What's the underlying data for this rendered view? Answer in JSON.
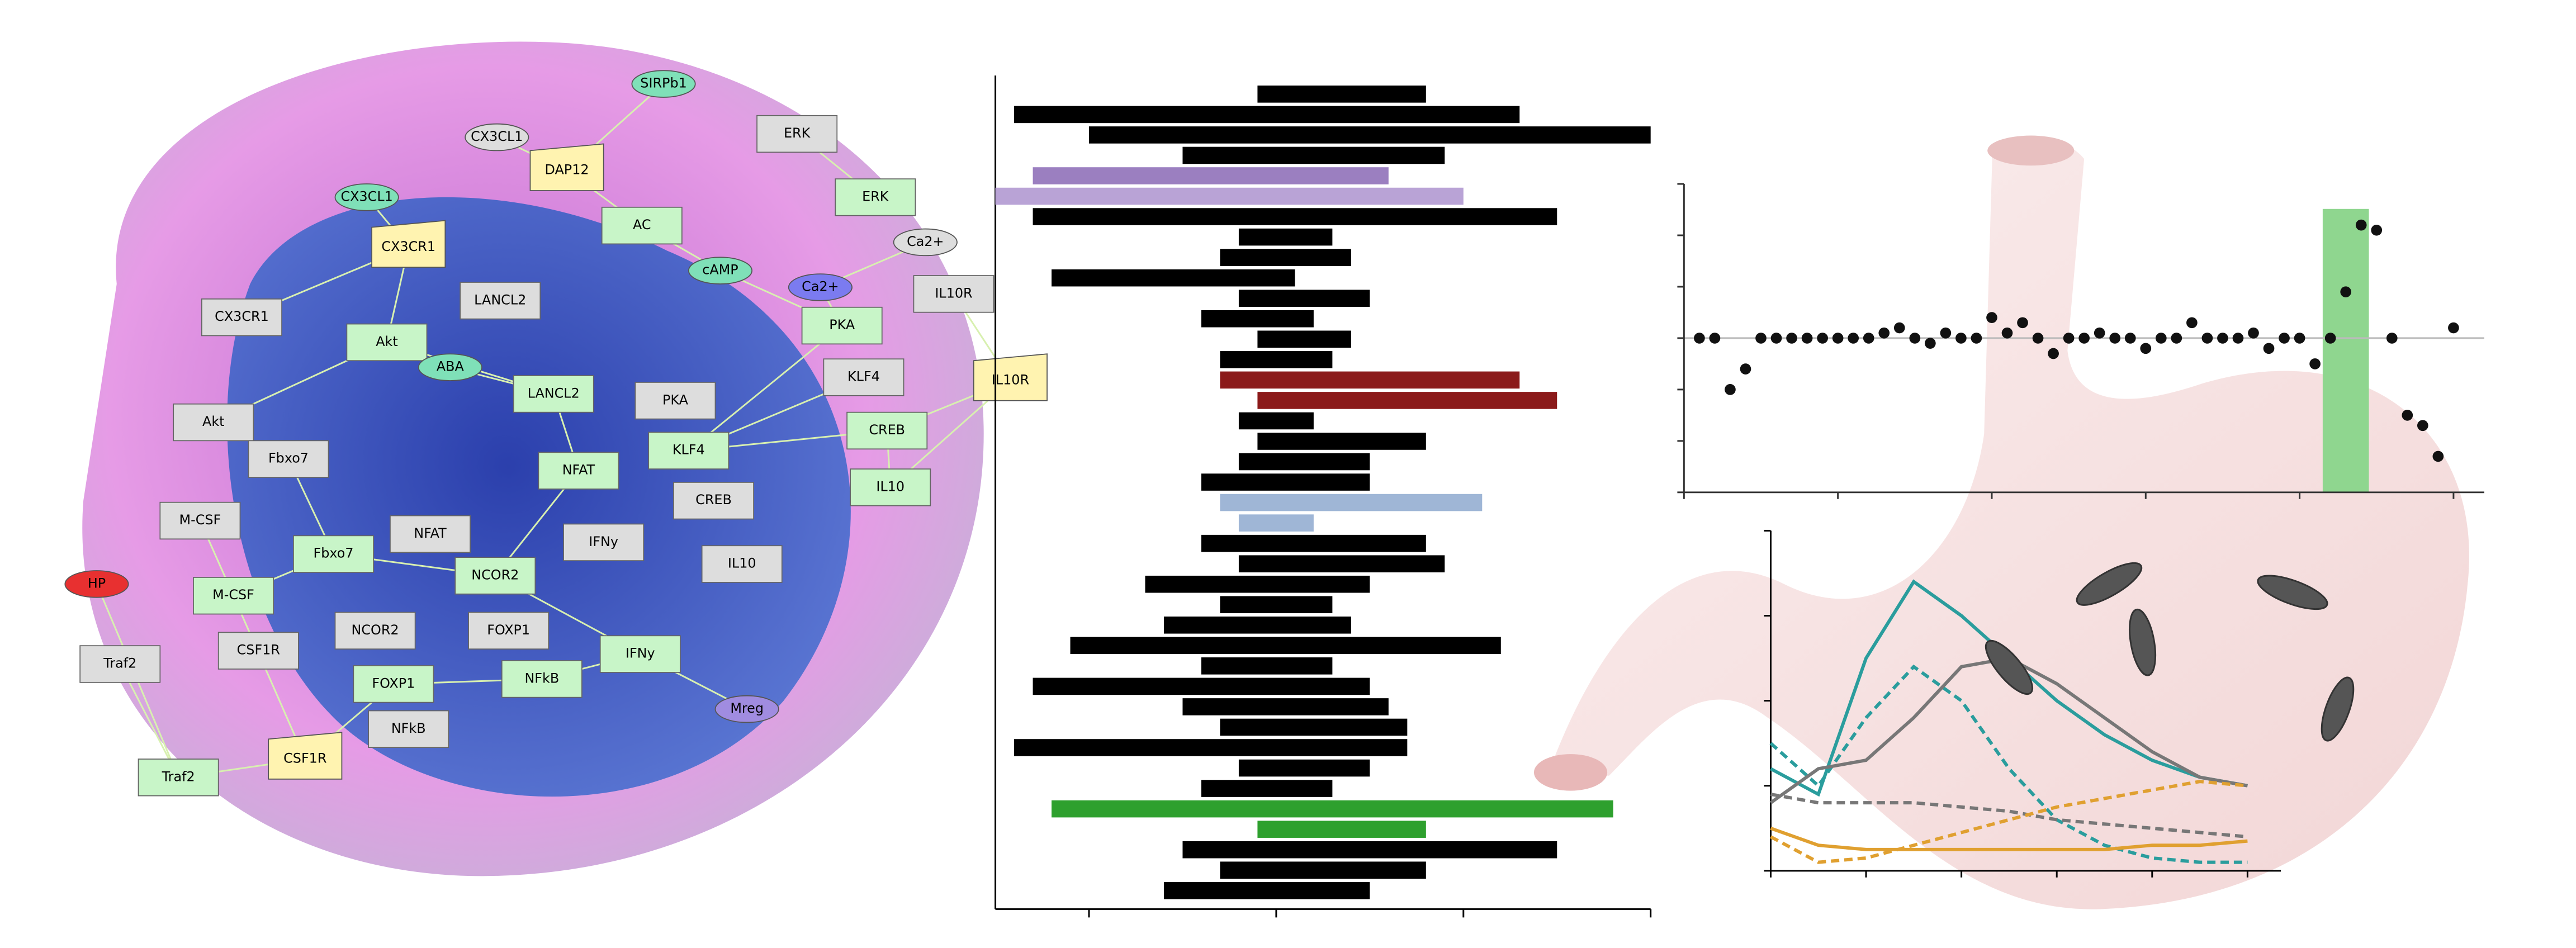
{
  "network": {
    "nodes": [
      {
        "label": "SIRPb1"
      },
      {
        "label": "CX3CL1"
      },
      {
        "label": "ERK"
      },
      {
        "label": "DAP12"
      },
      {
        "label": "ERK"
      },
      {
        "label": "CX3CL1"
      },
      {
        "label": "AC"
      },
      {
        "label": "Ca2+"
      },
      {
        "label": "CX3CR1"
      },
      {
        "label": "cAMP"
      },
      {
        "label": "Ca2+"
      },
      {
        "label": "IL10R"
      },
      {
        "label": "CX3CR1"
      },
      {
        "label": "LANCL2"
      },
      {
        "label": "Akt"
      },
      {
        "label": "PKA"
      },
      {
        "label": "ABA"
      },
      {
        "label": "IL10R"
      },
      {
        "label": "KLF4"
      },
      {
        "label": "LANCL2"
      },
      {
        "label": "PKA"
      },
      {
        "label": "Akt"
      },
      {
        "label": "CREB"
      },
      {
        "label": "Fbxo7"
      },
      {
        "label": "KLF4"
      },
      {
        "label": "NFAT"
      },
      {
        "label": "IL10"
      },
      {
        "label": "CREB"
      },
      {
        "label": "M-CSF"
      },
      {
        "label": "Fbxo7"
      },
      {
        "label": "NFAT"
      },
      {
        "label": "IFNy"
      },
      {
        "label": "NCOR2"
      },
      {
        "label": "IL10"
      },
      {
        "label": "HP"
      },
      {
        "label": "M-CSF"
      },
      {
        "label": "NCOR2"
      },
      {
        "label": "FOXP1"
      },
      {
        "label": "IFNy"
      },
      {
        "label": "CSF1R"
      },
      {
        "label": "Traf2"
      },
      {
        "label": "FOXP1"
      },
      {
        "label": "NFkB"
      },
      {
        "label": "Mreg"
      },
      {
        "label": "NFkB"
      },
      {
        "label": "CSF1R"
      },
      {
        "label": "Traf2"
      }
    ]
  },
  "chart_data": [
    {
      "type": "range-bar",
      "xlim": [
        -15,
        20
      ],
      "xticks": [
        -10,
        0,
        10,
        20
      ],
      "lows": [
        -1,
        -14,
        -10,
        -5,
        -13,
        -15,
        -13,
        -2,
        -3,
        -12,
        -2,
        -4,
        -1,
        -3,
        -3,
        -1,
        -2,
        -1,
        -2,
        -4,
        -3,
        -2,
        -4,
        -2,
        -7,
        -3,
        -6,
        -11,
        -4,
        -13,
        -5,
        -3,
        -14,
        -2,
        -4,
        -12,
        -1,
        -5,
        -3,
        -6
      ],
      "highs": [
        8,
        13,
        20,
        9,
        6,
        10,
        15,
        3,
        4,
        1,
        5,
        2,
        4,
        3,
        13,
        15,
        2,
        8,
        5,
        5,
        11,
        2,
        8,
        9,
        5,
        3,
        4,
        12,
        3,
        5,
        6,
        7,
        7,
        5,
        3,
        18,
        8,
        15,
        8,
        5
      ],
      "colors": [
        "#000",
        "#000",
        "#000",
        "#000",
        "#9b7fc0",
        "#b9a3d6",
        "#000",
        "#000",
        "#000",
        "#000",
        "#000",
        "#000",
        "#000",
        "#000",
        "#8b1a1a",
        "#8b1a1a",
        "#000",
        "#000",
        "#000",
        "#000",
        "#9fb6d6",
        "#9fb6d6",
        "#000",
        "#000",
        "#000",
        "#000",
        "#000",
        "#000",
        "#000",
        "#000",
        "#000",
        "#000",
        "#000",
        "#000",
        "#000",
        "#2ea02e",
        "#2ea02e",
        "#000",
        "#000",
        "#000"
      ]
    },
    {
      "type": "scatter",
      "xlim": [
        0,
        52
      ],
      "ylim": [
        -3,
        3
      ],
      "yticks": [
        -3,
        -2,
        -1,
        0,
        1,
        2,
        3
      ],
      "xticks": [
        0,
        10,
        20,
        30,
        40,
        50
      ],
      "color": "#111",
      "band": [
        41.5,
        44.5
      ],
      "band_color": "#8fd68f",
      "x": [
        1,
        2,
        3,
        4,
        5,
        6,
        7,
        8,
        9,
        10,
        11,
        12,
        13,
        14,
        15,
        16,
        17,
        18,
        19,
        20,
        21,
        22,
        23,
        24,
        25,
        26,
        27,
        28,
        29,
        30,
        31,
        32,
        33,
        34,
        35,
        36,
        37,
        38,
        39,
        40,
        41,
        42,
        43,
        44,
        45,
        46,
        47,
        48,
        49,
        50
      ],
      "values": [
        0,
        0,
        -1,
        -0.6,
        0,
        0,
        0,
        0,
        0,
        0,
        0,
        0,
        0.1,
        0.2,
        0,
        -0.1,
        0.1,
        0,
        0,
        0.4,
        0.1,
        0.3,
        0,
        -0.3,
        0,
        0,
        0.1,
        0,
        0,
        -0.2,
        0,
        0,
        0.3,
        0,
        0,
        0,
        0.1,
        -0.2,
        0,
        0,
        -0.5,
        0,
        0.9,
        2.2,
        2.1,
        0,
        -1.5,
        -1.7,
        -2.3,
        0.2
      ]
    },
    {
      "type": "line",
      "xlim": [
        0,
        10.7
      ],
      "ylim": [
        0,
        4
      ],
      "xticks": [
        0,
        2,
        4,
        6,
        8,
        10
      ],
      "yticks": [
        0,
        1,
        2,
        3,
        4
      ],
      "x": [
        0,
        1,
        2,
        3,
        4,
        5,
        6,
        7,
        8,
        9,
        10
      ],
      "series": [
        {
          "color": "#2a9d9d",
          "dash": false,
          "values": [
            1.2,
            0.9,
            2.5,
            3.4,
            3.0,
            2.5,
            2.0,
            1.6,
            1.3,
            1.1,
            1.0
          ]
        },
        {
          "color": "#2a9d9d",
          "dash": true,
          "values": [
            1.5,
            1.0,
            1.8,
            2.4,
            2.0,
            1.2,
            0.6,
            0.3,
            0.15,
            0.1,
            0.1
          ]
        },
        {
          "color": "#777",
          "dash": false,
          "values": [
            0.8,
            1.2,
            1.3,
            1.8,
            2.4,
            2.5,
            2.2,
            1.8,
            1.4,
            1.1,
            1.0
          ]
        },
        {
          "color": "#777",
          "dash": true,
          "values": [
            0.9,
            0.8,
            0.8,
            0.8,
            0.75,
            0.7,
            0.6,
            0.55,
            0.5,
            0.45,
            0.4
          ]
        },
        {
          "color": "#e0a030",
          "dash": false,
          "values": [
            0.5,
            0.3,
            0.25,
            0.25,
            0.25,
            0.25,
            0.25,
            0.25,
            0.3,
            0.3,
            0.35
          ]
        },
        {
          "color": "#e0a030",
          "dash": true,
          "values": [
            0.4,
            0.1,
            0.15,
            0.3,
            0.45,
            0.6,
            0.75,
            0.85,
            0.95,
            1.05,
            1.0
          ]
        }
      ]
    }
  ]
}
